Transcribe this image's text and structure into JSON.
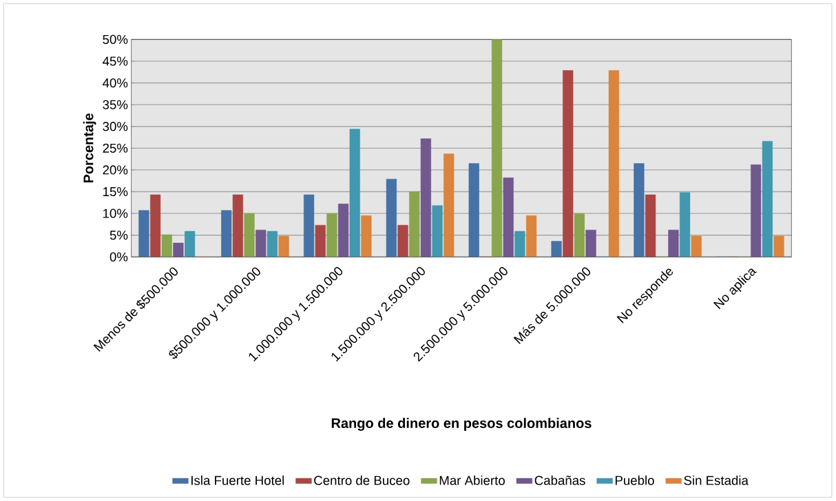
{
  "chart_data": {
    "type": "bar",
    "xlabel": "Rango de dinero en pesos colombianos",
    "ylabel": "Porcentaje",
    "categories": [
      "Menos de $500.000",
      "$500.000 y 1.000.000",
      "1.000.000 y 1.500.000",
      "1.500.000 y 2.500.000",
      "2.500.000 y 5.000.000",
      "Más de 5.000.000",
      "No responde",
      "No aplica"
    ],
    "series": [
      {
        "name": "Isla Fuerte Hotel",
        "color": "#4572a7",
        "values": [
          10.7,
          10.7,
          14.3,
          17.9,
          21.5,
          3.6,
          21.5,
          0
        ]
      },
      {
        "name": "Centro de Buceo",
        "color": "#aa4643",
        "values": [
          14.3,
          14.3,
          7.3,
          7.3,
          0,
          42.9,
          14.3,
          0
        ]
      },
      {
        "name": "Mar Abierto",
        "color": "#89a54e",
        "values": [
          5.1,
          10,
          10,
          15,
          50,
          10,
          0,
          0
        ]
      },
      {
        "name": "Cabañas",
        "color": "#71588f",
        "values": [
          3.2,
          6.2,
          12.2,
          27.2,
          18.2,
          6.2,
          6.2,
          21.2
        ]
      },
      {
        "name": "Pueblo",
        "color": "#4198af",
        "values": [
          5.9,
          5.9,
          29.4,
          11.8,
          5.9,
          0,
          14.8,
          26.6
        ]
      },
      {
        "name": "Sin Estadia",
        "color": "#db843d",
        "values": [
          0,
          4.8,
          9.5,
          23.7,
          9.5,
          42.9,
          4.8,
          4.8
        ]
      }
    ],
    "ylim": [
      0,
      50
    ],
    "yticks": [
      {
        "value": 0,
        "label": "0%"
      },
      {
        "value": 5,
        "label": "5%"
      },
      {
        "value": 10,
        "label": "10%"
      },
      {
        "value": 15,
        "label": "15%"
      },
      {
        "value": 20,
        "label": "20%"
      },
      {
        "value": 25,
        "label": "25%"
      },
      {
        "value": 30,
        "label": "30%"
      },
      {
        "value": 35,
        "label": "35%"
      },
      {
        "value": 40,
        "label": "40%"
      },
      {
        "value": 45,
        "label": "45%"
      },
      {
        "value": 50,
        "label": "50%"
      }
    ],
    "grid": "y",
    "legend": "bottom"
  }
}
